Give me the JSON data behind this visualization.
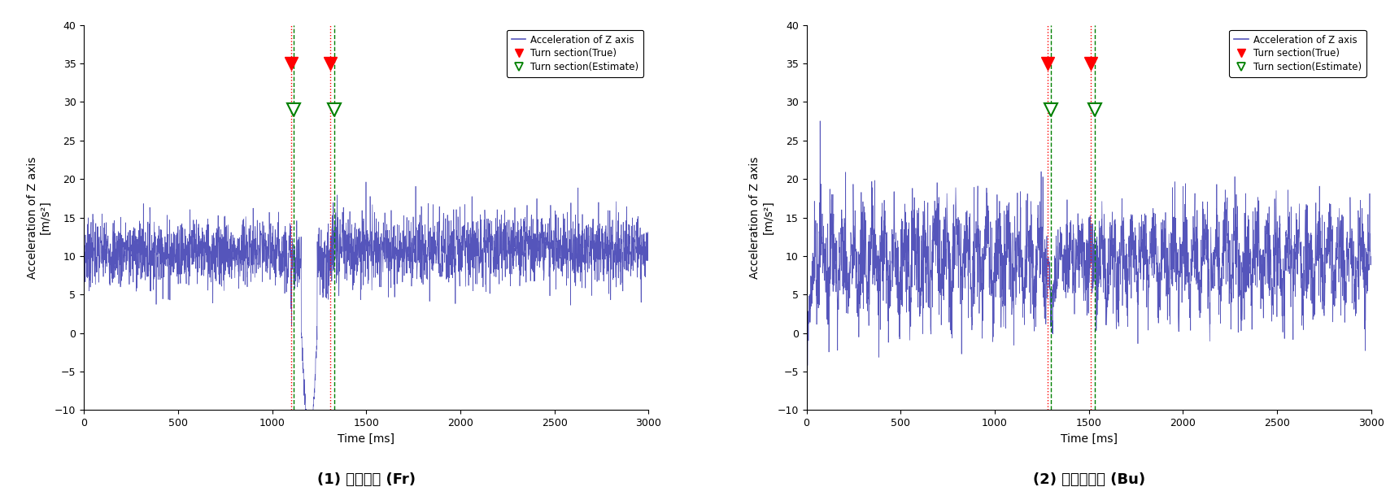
{
  "fig_width": 17.2,
  "fig_height": 6.15,
  "dpi": 100,
  "signal_color": "#5555bb",
  "signal_linewidth": 0.5,
  "xlim": [
    0,
    3000
  ],
  "ylim": [
    -10,
    40
  ],
  "yticks": [
    -10,
    -5,
    0,
    5,
    10,
    15,
    20,
    25,
    30,
    35,
    40
  ],
  "xticks": [
    0,
    500,
    1000,
    1500,
    2000,
    2500,
    3000
  ],
  "xlabel": "Time [ms]",
  "ylabel_line1": "Acceleration of Z axis",
  "ylabel_line2": "[m/s²]",
  "legend_line_label": "Acceleration of Z axis",
  "legend_true_label": "Turn section(True)",
  "legend_est_label": "Turn section(Estimate)",
  "true_color": "red",
  "est_color": "green",
  "vline_true_style": ":",
  "vline_est_style": "--",
  "marker_true_y": 35,
  "marker_est_y": 29,
  "plot1": {
    "title": "(1) クロール (Fr)",
    "true_starts": [
      1100,
      1310
    ],
    "est_starts": [
      1115,
      1330
    ],
    "seed": 7
  },
  "plot2": {
    "title": "(2) バタフライ (Bu)",
    "true_starts": [
      1280,
      1510
    ],
    "est_starts": [
      1300,
      1530
    ],
    "seed": 55
  },
  "background_color": "white",
  "subplot_caption_fontsize": 13,
  "axis_label_fontsize": 10,
  "tick_fontsize": 9,
  "legend_fontsize": 8.5
}
